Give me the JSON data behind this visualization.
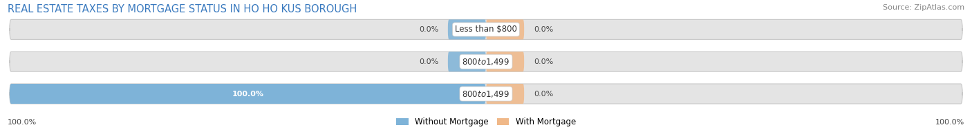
{
  "title": "REAL ESTATE TAXES BY MORTGAGE STATUS IN HO HO KUS BOROUGH",
  "source": "Source: ZipAtlas.com",
  "rows": [
    {
      "label": "Less than $800",
      "without_mortgage": 0.0,
      "with_mortgage": 0.0
    },
    {
      "label": "$800 to $1,499",
      "without_mortgage": 0.0,
      "with_mortgage": 0.0
    },
    {
      "label": "$800 to $1,499",
      "without_mortgage": 100.0,
      "with_mortgage": 0.0
    }
  ],
  "color_without": "#7eb3d8",
  "color_with": "#f0b888",
  "color_bar_bg": "#e4e4e4",
  "left_label_100": "100.0%",
  "right_label_100": "100.0%",
  "legend_without": "Without Mortgage",
  "legend_with": "With Mortgage",
  "title_fontsize": 10.5,
  "source_fontsize": 8,
  "label_fontsize": 8,
  "bar_height": 0.62,
  "figsize": [
    14.06,
    1.95
  ],
  "dpi": 100
}
